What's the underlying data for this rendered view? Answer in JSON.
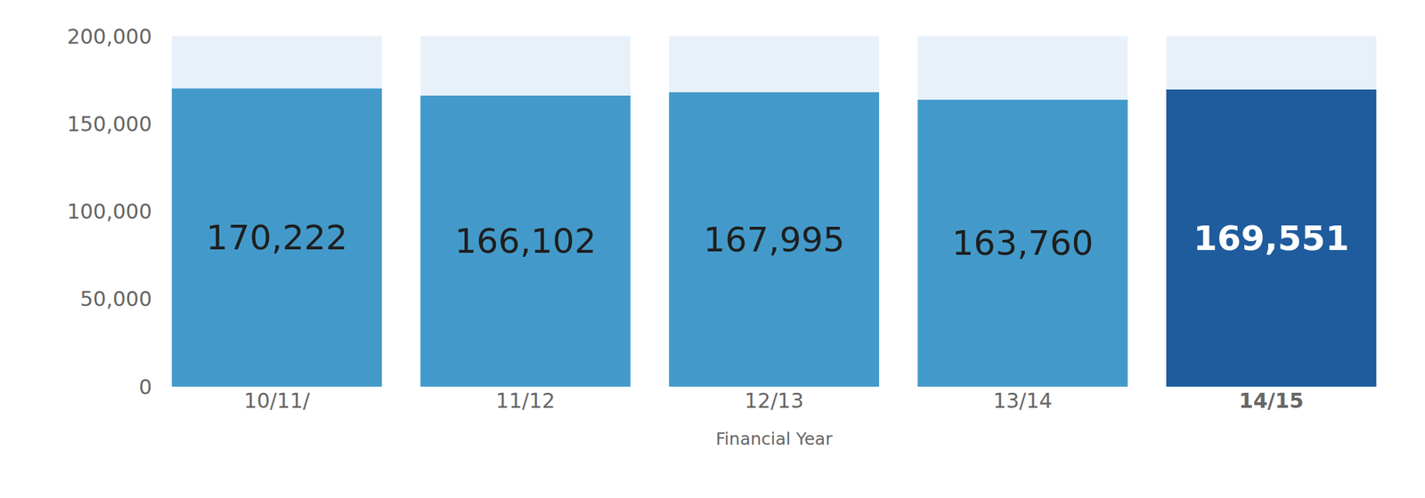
{
  "chart_data": {
    "type": "bar",
    "x_label": "Financial Year",
    "categories": [
      "10/11/",
      "11/12",
      "12/13",
      "13/14",
      "14/15"
    ],
    "values": [
      170222,
      166102,
      167995,
      163760,
      169551
    ],
    "value_labels": [
      "170,222",
      "166,102",
      "167,995",
      "163,760",
      "169,551"
    ],
    "colors": [
      "#439aca",
      "#439aca",
      "#439aca",
      "#439aca",
      "#1f5c9e"
    ],
    "data_labels": true,
    "grid": false,
    "ylim": [
      0,
      200000
    ],
    "yticks": [
      0,
      {
        "value": 50000,
        "label": "50,000"
      },
      {
        "value": 100000,
        "label": "100,000"
      },
      {
        "value": 150000,
        "label": "150,000"
      },
      {
        "value": 200000,
        "label": "200,000"
      }
    ]
  }
}
